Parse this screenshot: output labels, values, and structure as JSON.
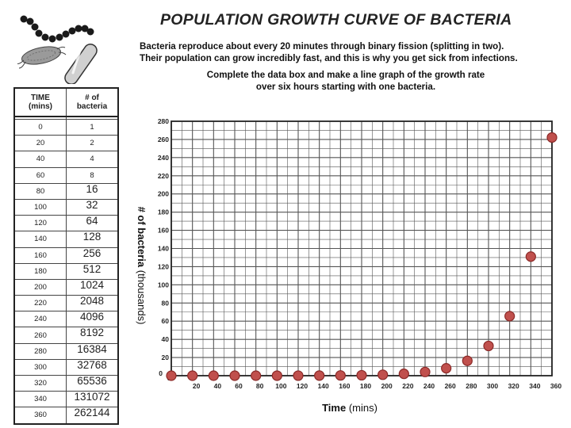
{
  "header": {
    "title": "POPULATION GROWTH CURVE OF BACTERIA",
    "intro_line1": "Bacteria reproduce about every 20 minutes through binary fission (splitting in two).",
    "intro_line2": "Their population can grow incredibly fast, and this is why you get sick from infections.",
    "instruction_line1": "Complete the data box and make a line graph of the growth rate",
    "instruction_line2": "over six hours starting with one bacteria."
  },
  "table": {
    "time_header_line1": "TIME",
    "time_header_line2": "(mins)",
    "count_header_line1": "# of",
    "count_header_line2": "bacteria",
    "rows": [
      {
        "time": "0",
        "count": "1"
      },
      {
        "time": "20",
        "count": "2"
      },
      {
        "time": "40",
        "count": "4"
      },
      {
        "time": "60",
        "count": "8"
      },
      {
        "time": "80",
        "count": "16"
      },
      {
        "time": "100",
        "count": "32"
      },
      {
        "time": "120",
        "count": "64"
      },
      {
        "time": "140",
        "count": "128"
      },
      {
        "time": "160",
        "count": "256"
      },
      {
        "time": "180",
        "count": "512"
      },
      {
        "time": "200",
        "count": "1024"
      },
      {
        "time": "220",
        "count": "2048"
      },
      {
        "time": "240",
        "count": "4096"
      },
      {
        "time": "260",
        "count": "8192"
      },
      {
        "time": "280",
        "count": "16384"
      },
      {
        "time": "300",
        "count": "32768"
      },
      {
        "time": "320",
        "count": "65536"
      },
      {
        "time": "340",
        "count": "131072"
      },
      {
        "time": "360",
        "count": "262144"
      }
    ]
  },
  "chart_data": {
    "type": "scatter",
    "xlabel": "Time",
    "xlabel_unit": "(mins)",
    "ylabel": "# of bacteria",
    "ylabel_unit": "(thousands)",
    "xlim": [
      0,
      360
    ],
    "ylim": [
      0,
      280
    ],
    "x_ticks": [
      20,
      40,
      60,
      80,
      100,
      120,
      140,
      160,
      180,
      200,
      220,
      240,
      260,
      280,
      300,
      320,
      340,
      360
    ],
    "y_ticks": [
      20,
      40,
      60,
      80,
      100,
      120,
      140,
      160,
      180,
      200,
      220,
      240,
      260,
      280
    ],
    "x_origin_label": "0",
    "y_origin_label": "0",
    "grid": true,
    "point_color": "#c0504d",
    "point_stroke": "#8b2a28",
    "x": [
      0,
      20,
      40,
      60,
      80,
      100,
      120,
      140,
      160,
      180,
      200,
      220,
      240,
      260,
      280,
      300,
      320,
      340,
      360
    ],
    "y": [
      0.001,
      0.002,
      0.004,
      0.008,
      0.016,
      0.032,
      0.064,
      0.128,
      0.256,
      0.512,
      1.024,
      2.048,
      4.096,
      8.192,
      16.384,
      32.768,
      65.536,
      131.072,
      262.144
    ]
  }
}
